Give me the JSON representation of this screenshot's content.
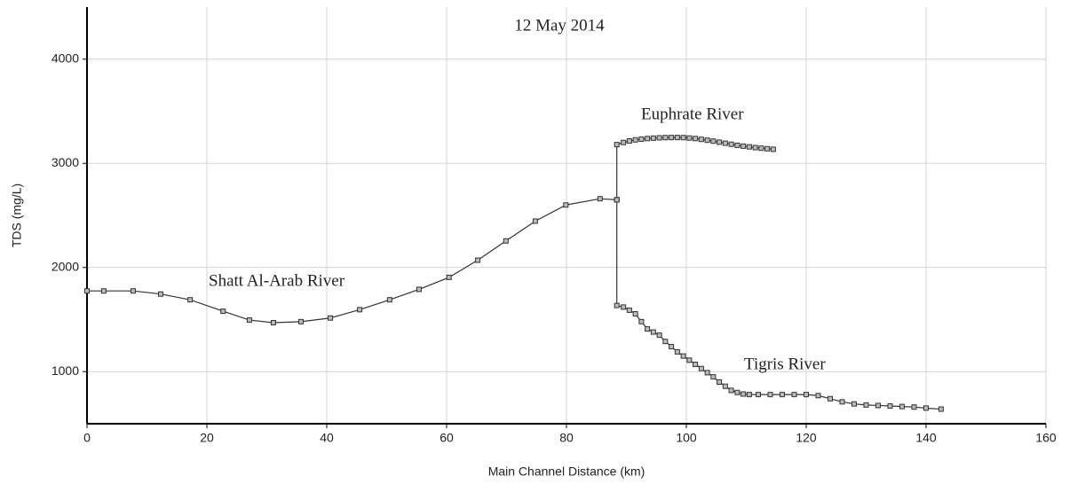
{
  "chart_data": {
    "type": "line",
    "title": "12 May 2014",
    "x_label": "Main Channel Distance (km)",
    "y_label": "TDS (mg/L)",
    "xlim": [
      0,
      160
    ],
    "xticks": [
      0,
      20,
      40,
      60,
      80,
      100,
      120,
      140,
      160
    ],
    "ylim": [
      500,
      4500
    ],
    "yticks": [
      1000,
      2000,
      3000,
      4000
    ],
    "grid": true,
    "color": "#333333",
    "series": [
      {
        "name": "Shatt Al-Arab River",
        "x": [
          0,
          2.8,
          7.7,
          12.3,
          17.2,
          22.7,
          27.1,
          31.1,
          35.7,
          40.6,
          45.5,
          50.5,
          55.4,
          60.4,
          65.2,
          69.9,
          74.8,
          79.9,
          85.6,
          88.4
        ],
        "values": [
          1775,
          1775,
          1775,
          1745,
          1690,
          1580,
          1495,
          1470,
          1480,
          1515,
          1595,
          1690,
          1790,
          1905,
          2070,
          2255,
          2445,
          2600,
          2660,
          2650
        ]
      },
      {
        "name": "Euphrate River",
        "x": [
          88.4,
          88.4,
          89.5,
          90.5,
          91.5,
          92.5,
          93.5,
          94.5,
          95.5,
          96.5,
          97.5,
          98.5,
          99.5,
          100.5,
          101.5,
          102.5,
          103.5,
          104.5,
          105.5,
          106.5,
          107.5,
          108.5,
          109.5,
          110.5,
          111.5,
          112.5,
          113.5,
          114.5
        ],
        "values": [
          2650,
          3180,
          3200,
          3215,
          3225,
          3232,
          3238,
          3242,
          3245,
          3247,
          3248,
          3248,
          3247,
          3243,
          3238,
          3230,
          3222,
          3213,
          3203,
          3193,
          3183,
          3173,
          3165,
          3158,
          3151,
          3145,
          3140,
          3135
        ]
      },
      {
        "name": "Tigris River",
        "x": [
          88.4,
          88.4,
          89.5,
          90.5,
          91.5,
          92.5,
          93.5,
          94.5,
          95.5,
          96.5,
          97.5,
          98.5,
          99.5,
          100.5,
          101.5,
          102.5,
          103.5,
          104.5,
          105.5,
          106.5,
          107.5,
          108.5,
          109.5,
          110.5,
          112,
          114,
          116,
          118,
          120,
          122,
          124,
          126,
          128,
          130,
          132,
          134,
          136,
          138,
          140,
          142.5
        ],
        "values": [
          2650,
          1635,
          1620,
          1590,
          1555,
          1480,
          1410,
          1380,
          1350,
          1290,
          1240,
          1190,
          1150,
          1110,
          1070,
          1030,
          990,
          950,
          900,
          860,
          820,
          800,
          785,
          780,
          780,
          780,
          780,
          780,
          780,
          770,
          740,
          710,
          690,
          680,
          675,
          670,
          665,
          660,
          650,
          640
        ]
      }
    ]
  }
}
